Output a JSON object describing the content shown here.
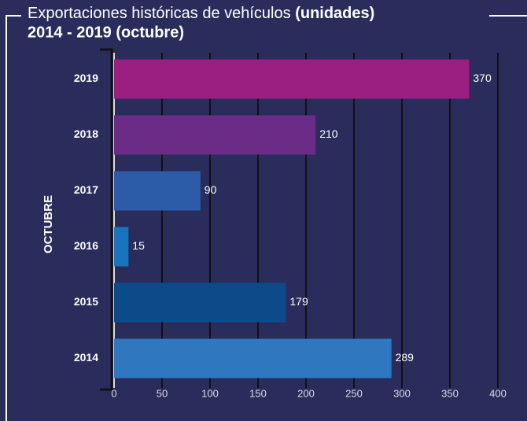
{
  "chart_data": {
    "type": "bar",
    "orientation": "horizontal",
    "title": "Exportaciones históricas de vehículos",
    "title_bold": "(unidades)",
    "subtitle": "2014 - 2019 (octubre)",
    "ylabel": "OCTUBRE",
    "categories": [
      "2019",
      "2018",
      "2017",
      "2016",
      "2015",
      "2014"
    ],
    "values": [
      370,
      210,
      90,
      15,
      179,
      289
    ],
    "colors": [
      "#9b1f80",
      "#6a2c86",
      "#2c5ba8",
      "#1a74bb",
      "#0d4a8a",
      "#2f78c0"
    ],
    "xlim": [
      0,
      400
    ],
    "xticks": [
      0,
      50,
      100,
      150,
      200,
      250,
      300,
      350,
      400
    ],
    "grid": true
  }
}
